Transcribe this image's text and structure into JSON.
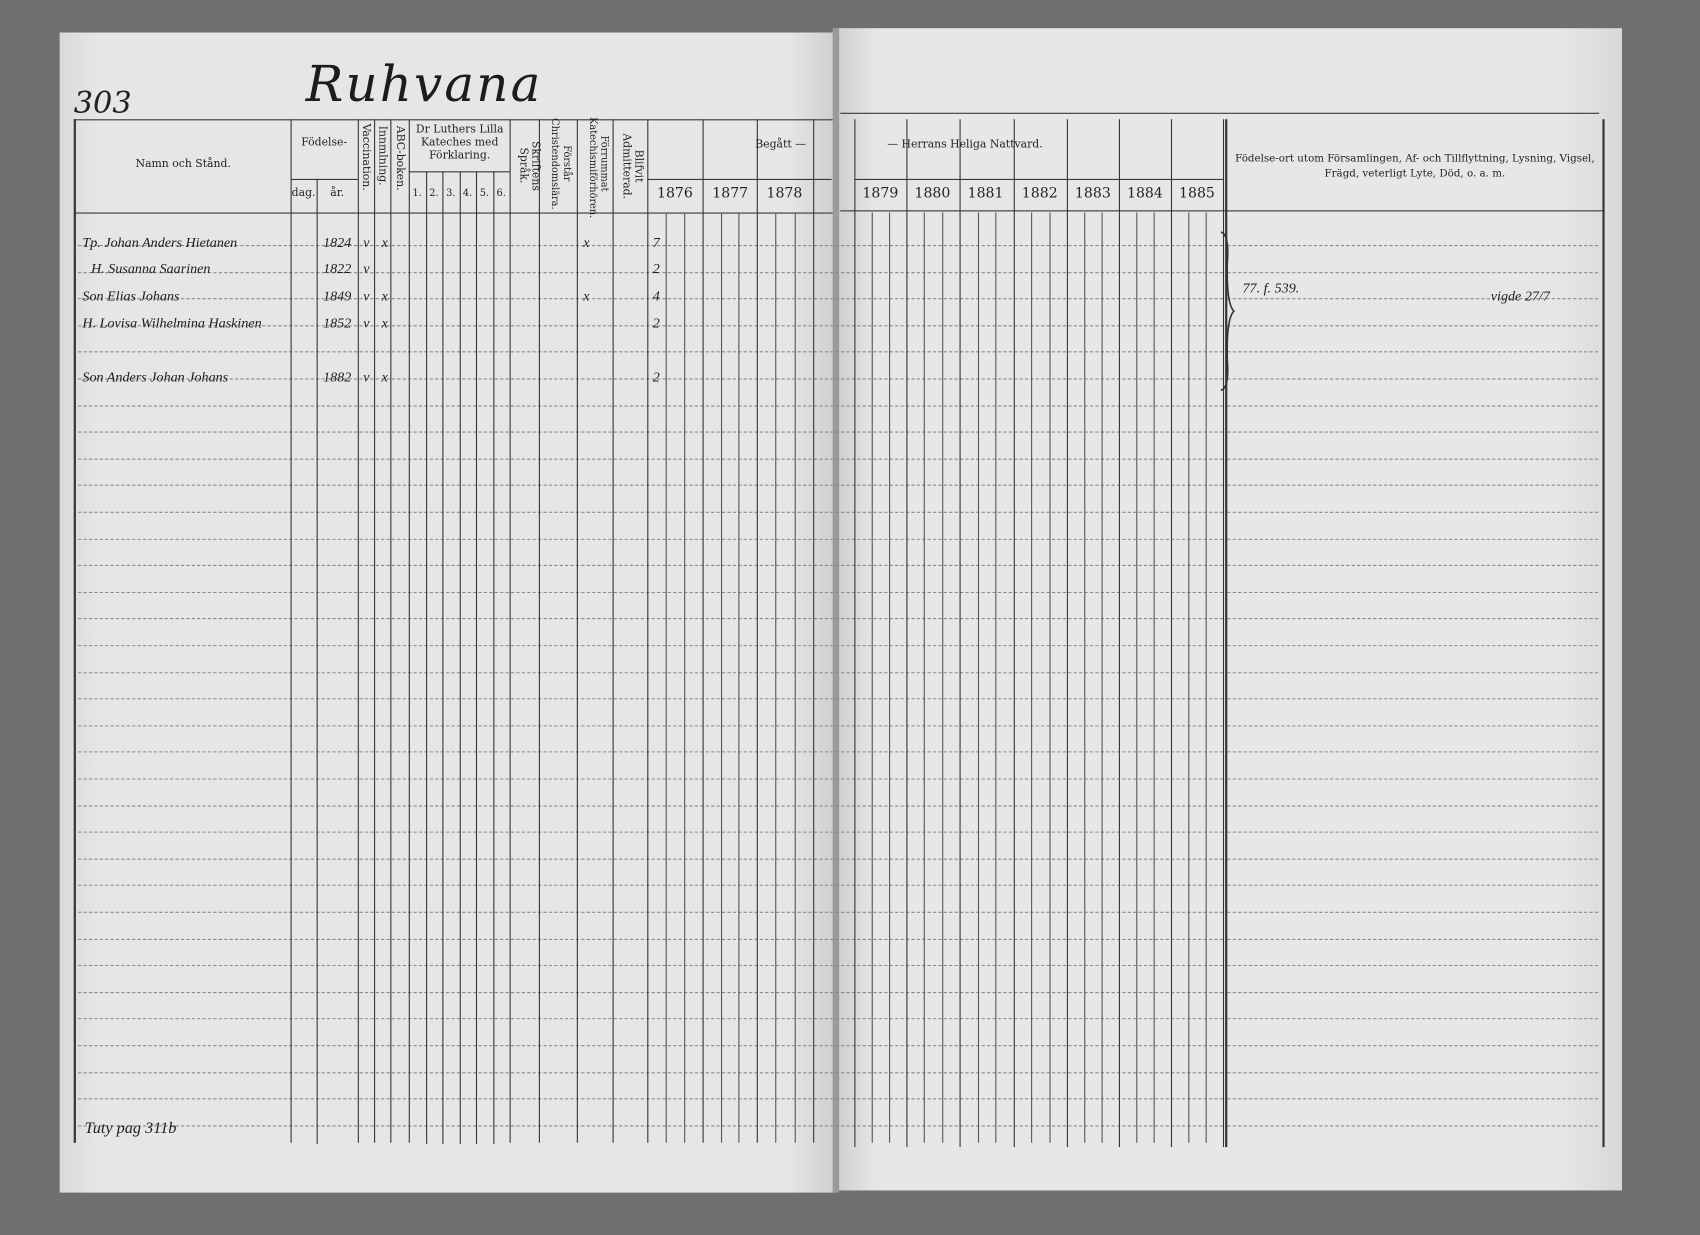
{
  "page_number": "303",
  "village_title": "Ruhvana",
  "left_headers": {
    "name": "Namn och Stånd.",
    "birth": "Födelse-",
    "birth_day": "dag.",
    "birth_year": "år.",
    "vaccination": "Vaccination.",
    "inoculation": "Innmlning.",
    "abc": "ABC-boken.",
    "catechism": "Dr Luthers Lilla Kateches med Förklaring.",
    "catechism_parts": [
      "1.",
      "2.",
      "3.",
      "4.",
      "5.",
      "6."
    ],
    "scripture": "Skriftens Språk.",
    "understands": "Förstår Christendomslära.",
    "attended": "Förrummat Katechismiförhören.",
    "admitted": "Blifvit Admitterad.",
    "communion_left": "Begått —",
    "years_left": [
      "1876",
      "1877",
      "1878"
    ]
  },
  "right_headers": {
    "communion_right": "— Herrans Heliga Nattvard.",
    "years_right": [
      "1879",
      "1880",
      "1881",
      "1882",
      "1883",
      "1884",
      "1885"
    ],
    "notes": "Födelse-ort utom Församlingen, Af- och Tillflyttning, Lysning, Vigsel, Frägd, veterligt Lyte, Död, o. a. m."
  },
  "entries": [
    {
      "name": "Tp. Johan Anders Hietanen",
      "year": "1824",
      "vacc": "v",
      "abc": "x",
      "attended": "x",
      "c1876": "7"
    },
    {
      "name": "H. Susanna Saarinen",
      "year": "1822",
      "vacc": "v",
      "abc": "",
      "attended": "",
      "c1876": "2"
    },
    {
      "name": "Son Elias Johans",
      "year": "1849",
      "vacc": "v",
      "abc": "x",
      "attended": "x",
      "c1876": "4"
    },
    {
      "name": "H. Lovisa Wilhelmina Haskinen",
      "year": "1852",
      "vacc": "v",
      "abc": "x",
      "attended": "",
      "c1876": "2"
    },
    {
      "name": "Son Anders Johan Johans",
      "year": "1882",
      "vacc": "v",
      "abc": "x",
      "attended": "",
      "c1876": "2"
    }
  ],
  "notes": [
    "77. f. 539.",
    "vigde 27/7"
  ],
  "footer_note": "Tuty pag 311b"
}
